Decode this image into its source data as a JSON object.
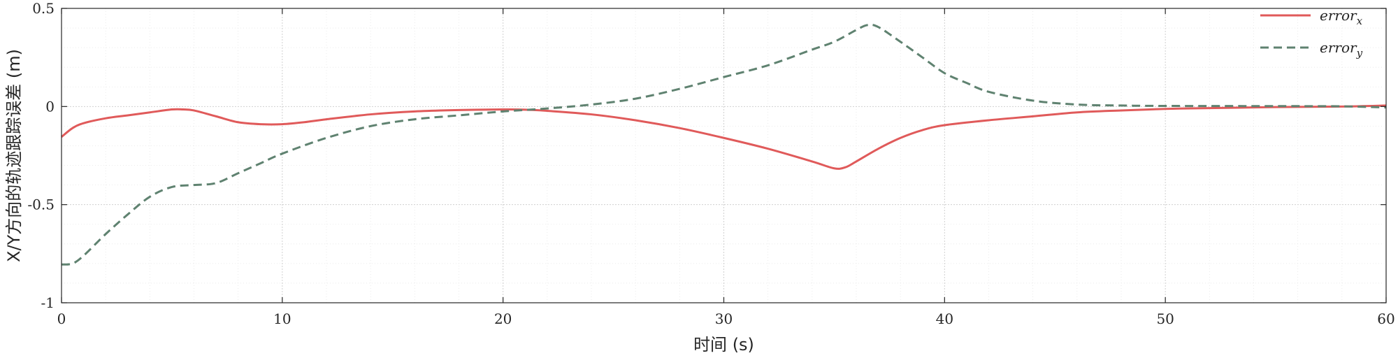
{
  "chart_data": {
    "type": "line",
    "xlabel": "时间 (s)",
    "ylabel": "X/Y方向的轨迹跟踪误差 (m)",
    "xlim": [
      0,
      60
    ],
    "ylim": [
      -1,
      0.5
    ],
    "xticks": [
      0,
      10,
      20,
      30,
      40,
      50,
      60
    ],
    "xtick_labels": [
      "0",
      "10",
      "20",
      "30",
      "40",
      "50",
      "60"
    ],
    "yticks": [
      -1,
      -0.5,
      0,
      0.5
    ],
    "ytick_labels": [
      "-1",
      "-0.5",
      "0",
      "0.5"
    ],
    "grid": true,
    "legend_position": "top-right",
    "series": [
      {
        "name": "errorx",
        "legend_main": "error",
        "legend_sub": "x",
        "color": "#e05a5a",
        "style": "solid",
        "points": [
          [
            0,
            -0.155
          ],
          [
            0.5,
            -0.11
          ],
          [
            1,
            -0.085
          ],
          [
            2,
            -0.06
          ],
          [
            3,
            -0.045
          ],
          [
            4,
            -0.03
          ],
          [
            5,
            -0.015
          ],
          [
            5.5,
            -0.015
          ],
          [
            6,
            -0.02
          ],
          [
            7,
            -0.05
          ],
          [
            8,
            -0.08
          ],
          [
            9,
            -0.09
          ],
          [
            10,
            -0.09
          ],
          [
            11,
            -0.08
          ],
          [
            12,
            -0.065
          ],
          [
            14,
            -0.04
          ],
          [
            16,
            -0.025
          ],
          [
            18,
            -0.018
          ],
          [
            20,
            -0.015
          ],
          [
            21,
            -0.016
          ],
          [
            22,
            -0.022
          ],
          [
            24,
            -0.04
          ],
          [
            26,
            -0.07
          ],
          [
            28,
            -0.11
          ],
          [
            30,
            -0.16
          ],
          [
            32,
            -0.215
          ],
          [
            34,
            -0.28
          ],
          [
            35,
            -0.315
          ],
          [
            35.5,
            -0.31
          ],
          [
            36,
            -0.28
          ],
          [
            37,
            -0.215
          ],
          [
            38,
            -0.16
          ],
          [
            39,
            -0.12
          ],
          [
            40,
            -0.095
          ],
          [
            42,
            -0.07
          ],
          [
            44,
            -0.05
          ],
          [
            46,
            -0.03
          ],
          [
            48,
            -0.02
          ],
          [
            50,
            -0.012
          ],
          [
            52,
            -0.008
          ],
          [
            55,
            -0.003
          ],
          [
            58,
            0
          ],
          [
            60,
            0.005
          ]
        ]
      },
      {
        "name": "errory",
        "legend_main": "error",
        "legend_sub": "y",
        "color": "#5f8270",
        "style": "dashed",
        "points": [
          [
            0,
            -0.805
          ],
          [
            0.5,
            -0.8
          ],
          [
            1,
            -0.76
          ],
          [
            2,
            -0.65
          ],
          [
            3,
            -0.55
          ],
          [
            4,
            -0.46
          ],
          [
            5,
            -0.41
          ],
          [
            6,
            -0.4
          ],
          [
            7,
            -0.39
          ],
          [
            8,
            -0.34
          ],
          [
            9,
            -0.29
          ],
          [
            10,
            -0.24
          ],
          [
            12,
            -0.16
          ],
          [
            14,
            -0.1
          ],
          [
            16,
            -0.065
          ],
          [
            18,
            -0.045
          ],
          [
            20,
            -0.025
          ],
          [
            22,
            -0.01
          ],
          [
            24,
            0.01
          ],
          [
            26,
            0.04
          ],
          [
            28,
            0.09
          ],
          [
            30,
            0.15
          ],
          [
            32,
            0.21
          ],
          [
            34,
            0.29
          ],
          [
            35,
            0.33
          ],
          [
            36,
            0.39
          ],
          [
            36.5,
            0.415
          ],
          [
            37,
            0.405
          ],
          [
            38,
            0.33
          ],
          [
            39,
            0.25
          ],
          [
            40,
            0.17
          ],
          [
            41,
            0.12
          ],
          [
            42,
            0.075
          ],
          [
            44,
            0.03
          ],
          [
            46,
            0.01
          ],
          [
            48,
            0.005
          ],
          [
            50,
            0.003
          ],
          [
            55,
            0.002
          ],
          [
            58,
            0.001
          ],
          [
            60,
            -0.005
          ]
        ]
      }
    ]
  }
}
